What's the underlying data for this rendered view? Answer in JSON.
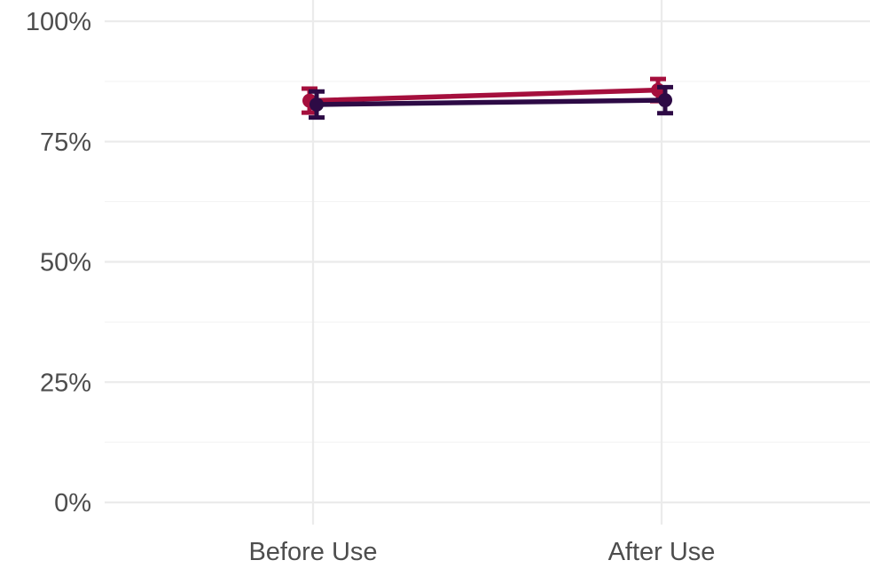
{
  "chart_data": {
    "type": "line",
    "title": "",
    "xlabel": "",
    "ylabel": "",
    "categories": [
      "Before Use",
      "After Use"
    ],
    "y_ticks": [
      "0%",
      "25%",
      "50%",
      "75%",
      "100%"
    ],
    "ylim": [
      0,
      100
    ],
    "grid": true,
    "legend": "none",
    "series": [
      {
        "color": "#a50f3d",
        "values": [
          83.5,
          85.7
        ],
        "error_low": [
          81.0,
          83.4
        ],
        "error_high": [
          86.0,
          88.0
        ]
      },
      {
        "color": "#2d0a45",
        "values": [
          82.7,
          83.6
        ],
        "error_low": [
          80.0,
          80.9
        ],
        "error_high": [
          85.4,
          86.3
        ]
      }
    ]
  }
}
